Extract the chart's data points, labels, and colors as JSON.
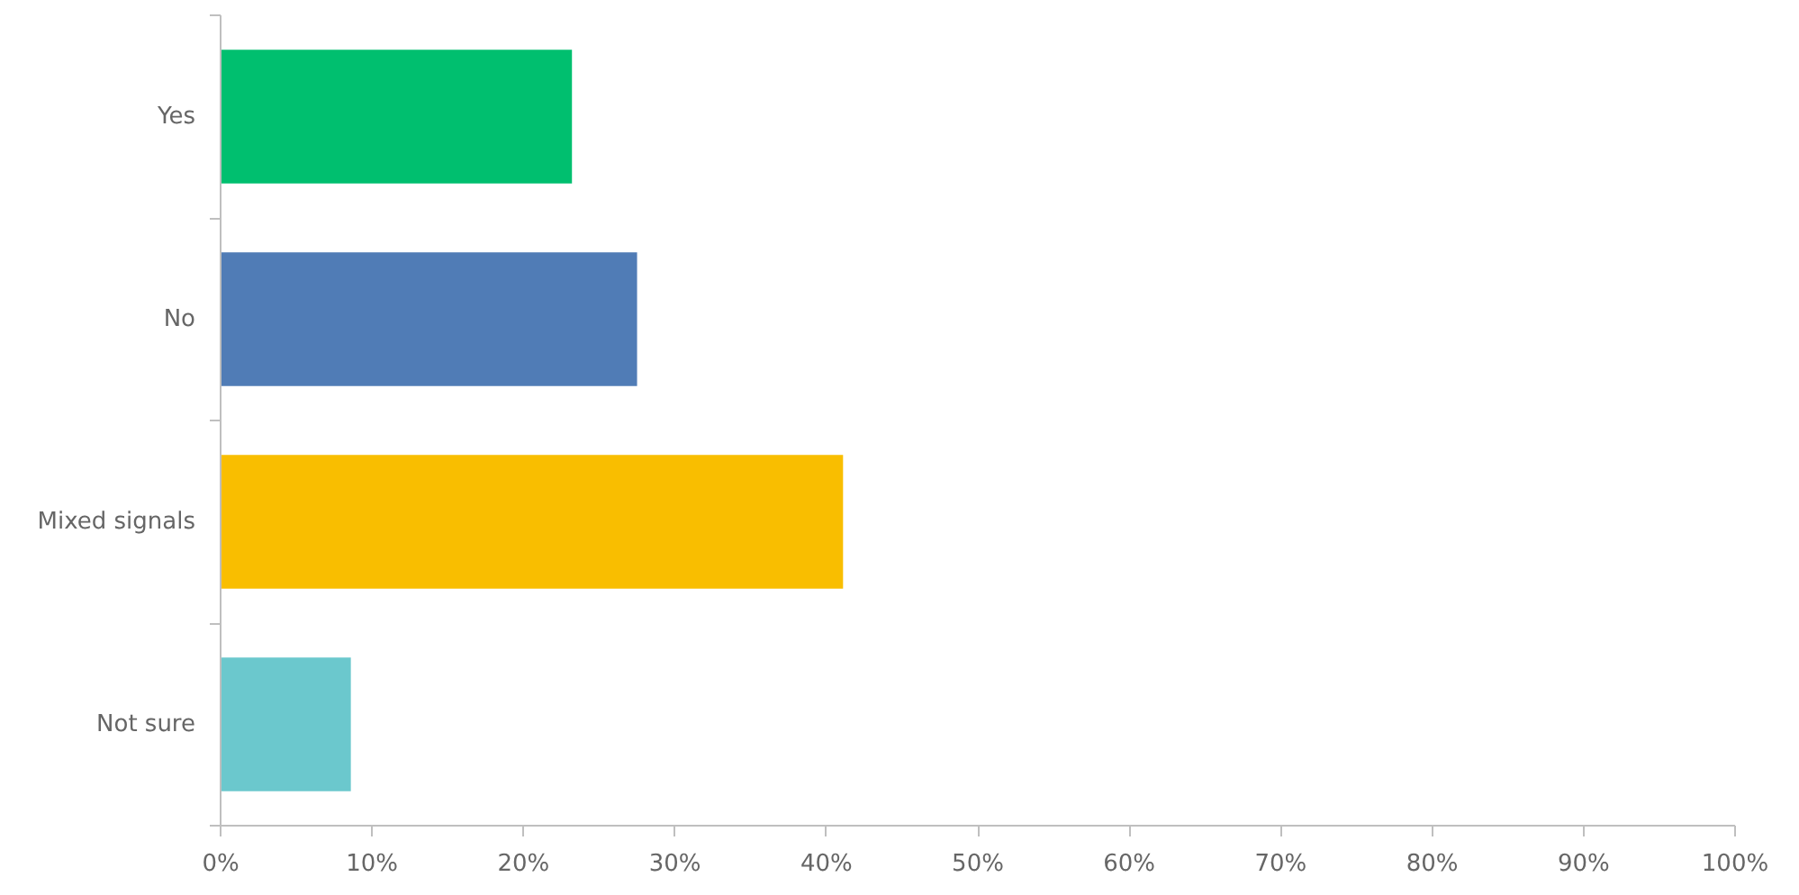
{
  "chart_data": {
    "type": "bar",
    "orientation": "horizontal",
    "categories": [
      "Yes",
      "No",
      "Mixed signals",
      "Not sure"
    ],
    "values": [
      23.2,
      27.5,
      41.1,
      8.6
    ],
    "colors": [
      "#00bf6f",
      "#507cb6",
      "#f9be00",
      "#6bc8cd"
    ],
    "xlim": [
      0,
      100
    ],
    "xticks": [
      {
        "value": 0,
        "label": "0%"
      },
      {
        "value": 10,
        "label": "10%"
      },
      {
        "value": 20,
        "label": "20%"
      },
      {
        "value": 30,
        "label": "30%"
      },
      {
        "value": 40,
        "label": "40%"
      },
      {
        "value": 50,
        "label": "50%"
      },
      {
        "value": 60,
        "label": "60%"
      },
      {
        "value": 70,
        "label": "70%"
      },
      {
        "value": 80,
        "label": "80%"
      },
      {
        "value": 90,
        "label": "90%"
      },
      {
        "value": 100,
        "label": "100%"
      }
    ],
    "grid": false,
    "legend": false
  }
}
